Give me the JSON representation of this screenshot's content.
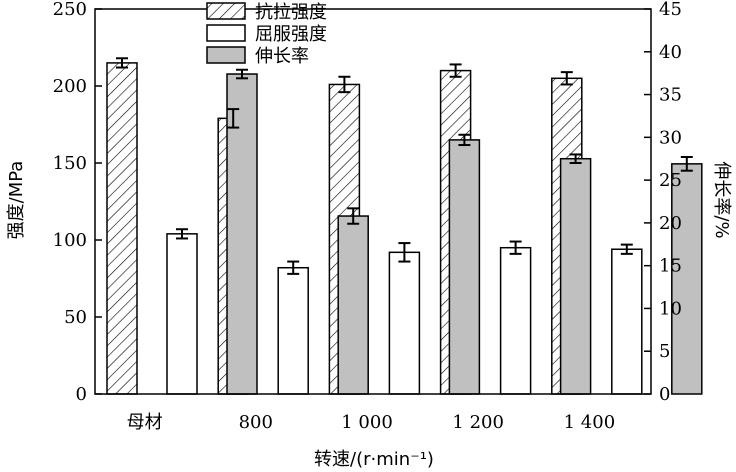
{
  "chart_data": {
    "type": "bar",
    "categories": [
      "母材",
      "800",
      "1 000",
      "1 200",
      "1 400"
    ],
    "series": [
      {
        "name": "抗拉强度",
        "axis": "left",
        "values": [
          215,
          179,
          201,
          210,
          205
        ],
        "errors": [
          3,
          6,
          5,
          4,
          4
        ],
        "fill": "hatch"
      },
      {
        "name": "屈服强度",
        "axis": "left",
        "values": [
          104,
          82,
          92,
          95,
          94
        ],
        "errors": [
          3,
          4,
          6,
          4,
          3
        ],
        "fill": "#ffffff"
      },
      {
        "name": "伸长率",
        "axis": "right",
        "values": [
          37.4,
          20.8,
          29.7,
          27.5,
          26.9
        ],
        "errors": [
          0.5,
          0.9,
          0.6,
          0.5,
          0.8
        ],
        "fill": "#c0c0c0"
      }
    ],
    "xlabel": "转速/(r·min⁻¹)",
    "ylabel_left": "强度/MPa",
    "ylabel_right": "伸长率/%",
    "ylim_left": [
      0,
      250
    ],
    "yticks_left": [
      0,
      50,
      100,
      150,
      200,
      250
    ],
    "ylim_right": [
      0,
      45
    ],
    "yticks_right": [
      0,
      5,
      10,
      15,
      20,
      25,
      30,
      35,
      40,
      45
    ],
    "legend_position": "top-center",
    "grid": false
  }
}
